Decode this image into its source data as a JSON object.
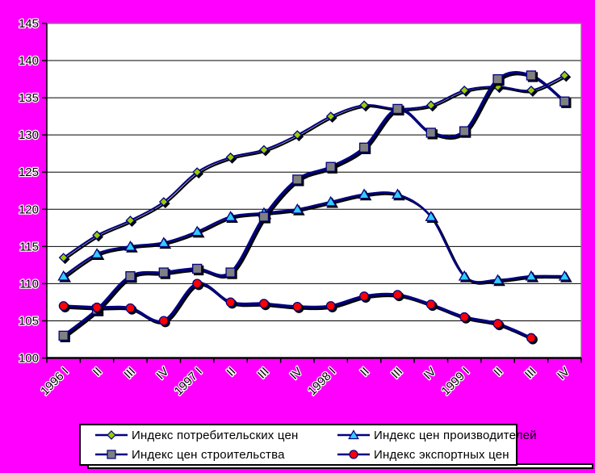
{
  "chart_data": {
    "type": "line",
    "title": "",
    "categories": [
      "1996 I",
      "II",
      "III",
      "IV",
      "1997 I",
      "II",
      "III",
      "IV",
      "1998 I",
      "II",
      "III",
      "IV",
      "1999 I",
      "II",
      "III",
      "IV"
    ],
    "series": [
      {
        "name": "Индекс потребительских цен",
        "marker": "diamond",
        "color": "#99CC00",
        "values": [
          113.5,
          116.5,
          118.5,
          121,
          125,
          127,
          128,
          130,
          132.5,
          134,
          133.5,
          134,
          136,
          136.5,
          136,
          138
        ]
      },
      {
        "name": "Индекс цен производителей",
        "marker": "triangle",
        "color": "#33CCFF",
        "values": [
          111,
          114,
          115,
          115.5,
          117,
          119,
          119.5,
          120,
          121,
          122,
          122,
          119,
          111,
          110.5,
          111,
          111
        ]
      },
      {
        "name": "Индекс цен строительства",
        "marker": "square",
        "color": "#808080",
        "values": [
          103,
          106.5,
          111,
          111.5,
          112,
          111.5,
          119,
          124,
          125.7,
          128.3,
          133.5,
          130.3,
          130.5,
          137.5,
          138,
          134.5
        ]
      },
      {
        "name": "Индекс экспортных цен",
        "marker": "circle",
        "color": "#FF0000",
        "values": [
          107,
          106.8,
          106.7,
          105,
          110,
          107.5,
          107.3,
          106.9,
          107,
          108.3,
          108.5,
          107.2,
          105.5,
          104.6,
          102.7,
          null
        ]
      }
    ],
    "ylim": [
      100,
      145
    ],
    "yticks": [
      100,
      105,
      110,
      115,
      120,
      125,
      130,
      135,
      140,
      145
    ],
    "grid": true,
    "legend_position": "bottom",
    "background": "#FF00FF",
    "plot_background": "#FFFFFF",
    "line_color": "#000080",
    "grid_color": "#000000",
    "axis_color": "#000000",
    "plot_border_color": "#808080",
    "shadow_color": "#000000",
    "x_label_rotation_deg": -45
  }
}
